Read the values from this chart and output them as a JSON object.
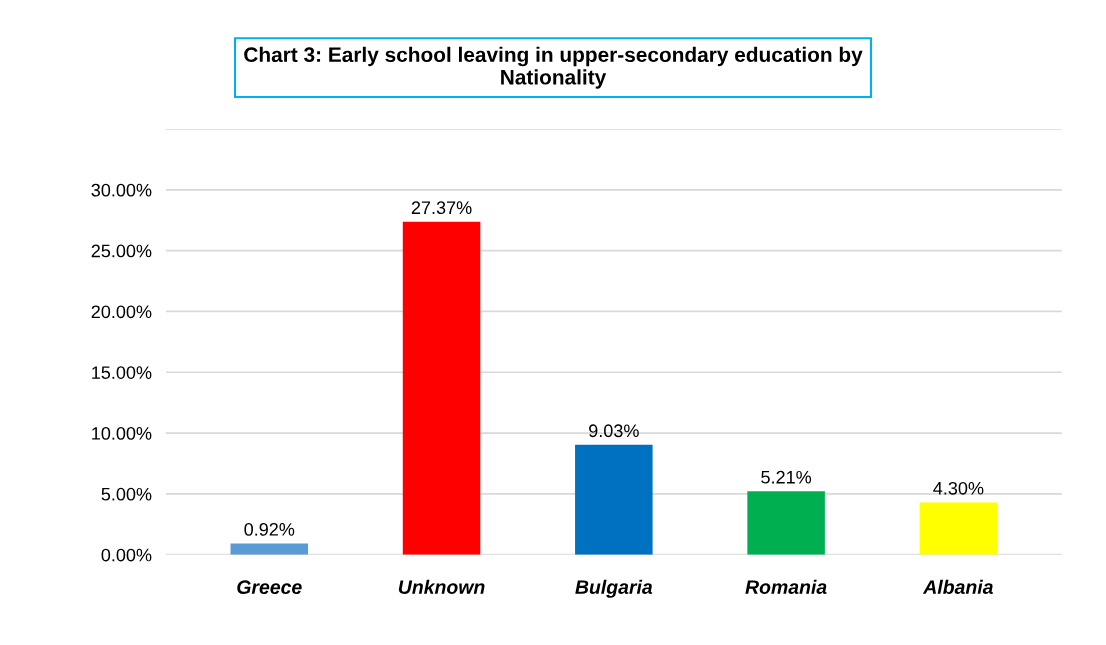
{
  "chart_data": {
    "type": "bar",
    "title": "Chart 3: Early school leaving in upper-secondary education by\nNationality",
    "categories": [
      "Greece",
      "Unknown",
      "Bulgaria",
      "Romania",
      "Albania"
    ],
    "values": [
      0.92,
      27.37,
      9.03,
      5.21,
      4.3
    ],
    "colors": [
      "#5b9bd5",
      "#ff0000",
      "#0070c0",
      "#00b050",
      "#ffff00"
    ],
    "value_labels": [
      "0.92%",
      "27.37%",
      "9.03%",
      "5.21%",
      "4.30%"
    ],
    "ylim": [
      0,
      35
    ],
    "yticks": [
      {
        "value": 0,
        "label": "0.00%"
      },
      {
        "value": 5,
        "label": "5.00%"
      },
      {
        "value": 10,
        "label": "10.00%"
      },
      {
        "value": 15,
        "label": "15.00%"
      },
      {
        "value": 20,
        "label": "20.00%"
      },
      {
        "value": 25,
        "label": "25.00%"
      },
      {
        "value": 30,
        "label": "30.00%"
      },
      {
        "value": 35,
        "label": null
      }
    ],
    "grid": "y"
  }
}
